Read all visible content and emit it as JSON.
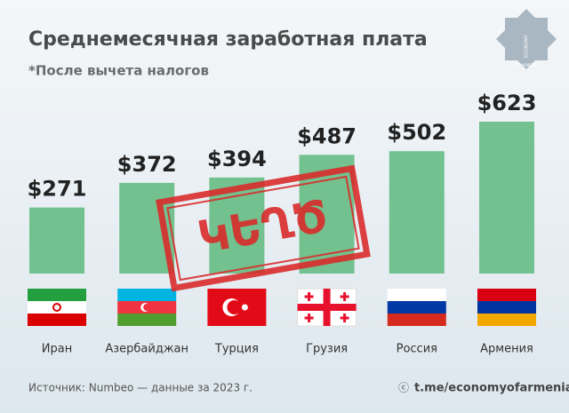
{
  "chart_data": {
    "type": "bar",
    "title": "Среднемесячная заработная плата",
    "subtitle": "*После вычета налогов",
    "categories": [
      "Иран",
      "Азербайджан",
      "Турция",
      "Грузия",
      "Россия",
      "Армения"
    ],
    "values": [
      271,
      372,
      394,
      487,
      502,
      623
    ],
    "value_labels": [
      "$271",
      "$372",
      "$394",
      "$487",
      "$502",
      "$623"
    ],
    "color": "#72c18e",
    "stamp": "ԿԵՂԾ",
    "source": "Источник: Numbeo — данные за 2023 г.",
    "credit": "t.me/economyofarmenia",
    "logo": [
      "ECONOMY",
      "OF ARMENIA"
    ]
  }
}
